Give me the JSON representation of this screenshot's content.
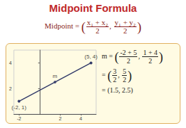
{
  "title": "Midpoint Formula",
  "brackets": [
    "(",
    ",",
    ")"
  ],
  "formula": {
    "lead": "Midpoint =",
    "fractions": [
      [
        "x₁ + x₂",
        "2"
      ],
      [
        "y₁ + y₂",
        "2"
      ]
    ]
  },
  "chart_data": {
    "type": "line",
    "xlim": [
      -2.5,
      5.5
    ],
    "xticks": [
      -2,
      2,
      4
    ],
    "ylim": [
      0,
      5
    ],
    "yticks": [
      2,
      4
    ],
    "grid": false,
    "series": [
      {
        "type": "line",
        "color": "#333b6a",
        "marker": "circle",
        "x": [
          -2,
          5
        ],
        "values": [
          1,
          4
        ]
      },
      {
        "type": "scatter",
        "color": "#333b6a",
        "marker": "circle",
        "x": [
          1.5
        ],
        "values": [
          2.5
        ]
      }
    ],
    "annotations": [
      {
        "text": "(-2, 1)",
        "x": -2,
        "y": 1
      },
      {
        "text": "(5, 4)",
        "x": 5,
        "y": 4
      },
      {
        "text": "m",
        "x": 1.5,
        "y": 2.5
      }
    ]
  },
  "work": [
    {
      "lead": "m =",
      "fractions": [
        [
          "-2 + 5",
          "2"
        ],
        [
          "1 + 4",
          "2"
        ]
      ]
    },
    {
      "lead": "=",
      "fractions": [
        [
          "3",
          "2"
        ],
        [
          "5",
          "2"
        ]
      ]
    },
    {
      "lead": "=",
      "text": "(1.5, 2.5)"
    }
  ]
}
